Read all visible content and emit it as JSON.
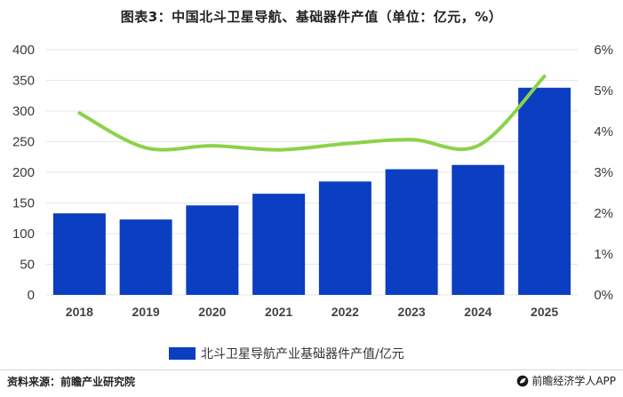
{
  "colors": {
    "bar": "#0b3ec0",
    "line": "#8cd24a",
    "grid": "#e6e6e6",
    "text": "#333333"
  },
  "footer": {
    "source": "资料来源：前瞻产业研究院",
    "brand": "前瞻经济学人APP",
    "brand_icon": "leaf-logo-icon"
  },
  "chart_data": {
    "type": "bar",
    "title": "图表3：中国北斗卫星导航、基础器件产值（单位：亿元，%）",
    "categories": [
      "2018",
      "2019",
      "2020",
      "2021",
      "2022",
      "2023",
      "2024",
      "2025"
    ],
    "series": [
      {
        "name": "北斗卫星导航产业基础器件产值/亿元",
        "type": "bar",
        "axis": "left",
        "values": [
          133,
          123,
          146,
          165,
          185,
          205,
          212,
          338
        ]
      },
      {
        "type": "line",
        "axis": "right",
        "unit": "%",
        "values": [
          4.45,
          3.6,
          3.65,
          3.55,
          3.7,
          3.8,
          3.65,
          5.35
        ]
      }
    ],
    "left_axis": {
      "ylim": [
        0,
        400
      ],
      "ticks": [
        "0",
        "50",
        "100",
        "150",
        "200",
        "250",
        "300",
        "350",
        "400"
      ]
    },
    "right_axis": {
      "ylim": [
        0,
        6
      ],
      "ticks": [
        "0%",
        "1%",
        "2%",
        "3%",
        "4%",
        "5%",
        "6%"
      ]
    },
    "grid": true,
    "legend_position": "bottom"
  }
}
